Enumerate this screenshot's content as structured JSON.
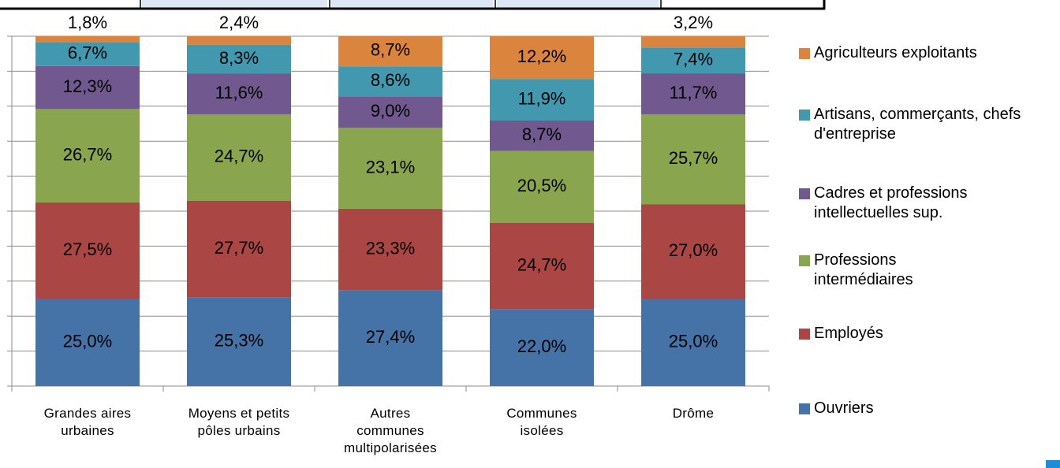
{
  "chart_data": {
    "type": "stacked_bar",
    "categories": [
      "Grandes aires urbaines",
      "Moyens et petits pôles urbains",
      "Autres communes multipolarisées",
      "Communes isolées",
      "Drôme"
    ],
    "series": [
      {
        "name": "Ouvriers",
        "color": "#4572a7",
        "values": [
          25.0,
          25.3,
          27.4,
          22.0,
          25.0
        ],
        "value_labels": [
          "25,0%",
          "25,3%",
          "27,4%",
          "22,0%",
          "25,0%"
        ]
      },
      {
        "name": "Employés",
        "color": "#aa4643",
        "values": [
          27.5,
          27.7,
          23.3,
          24.7,
          27.0
        ],
        "value_labels": [
          "27,5%",
          "27,7%",
          "23,3%",
          "24,7%",
          "27,0%"
        ]
      },
      {
        "name": "Professions intermédiaires",
        "color": "#89a54e",
        "values": [
          26.7,
          24.7,
          23.1,
          20.5,
          25.7
        ],
        "value_labels": [
          "26,7%",
          "24,7%",
          "23,1%",
          "20,5%",
          "25,7%"
        ]
      },
      {
        "name": "Cadres et professions intellectuelles sup.",
        "color": "#71588f",
        "values": [
          12.3,
          11.6,
          9.0,
          8.7,
          11.7
        ],
        "value_labels": [
          "12,3%",
          "11,6%",
          "9,0%",
          "8,7%",
          "11,7%"
        ]
      },
      {
        "name": "Artisans, commerçants, chefs d'entreprise",
        "color": "#4198af",
        "values": [
          6.7,
          8.3,
          8.6,
          11.9,
          7.4
        ],
        "value_labels": [
          "6,7%",
          "8,3%",
          "8,6%",
          "11,9%",
          "7,4%"
        ]
      },
      {
        "name": "Agriculteurs exploitants",
        "color": "#db843d",
        "values": [
          1.8,
          2.4,
          8.7,
          12.2,
          3.2
        ],
        "value_labels": [
          "1,8%",
          "2,4%",
          "8,7%",
          "12,2%",
          "3,2%"
        ]
      }
    ],
    "ylim": [
      0,
      100
    ],
    "yticks": [
      0,
      10,
      20,
      30,
      40,
      50,
      60,
      70,
      80,
      90,
      100
    ],
    "grid": true,
    "legend": "right"
  }
}
